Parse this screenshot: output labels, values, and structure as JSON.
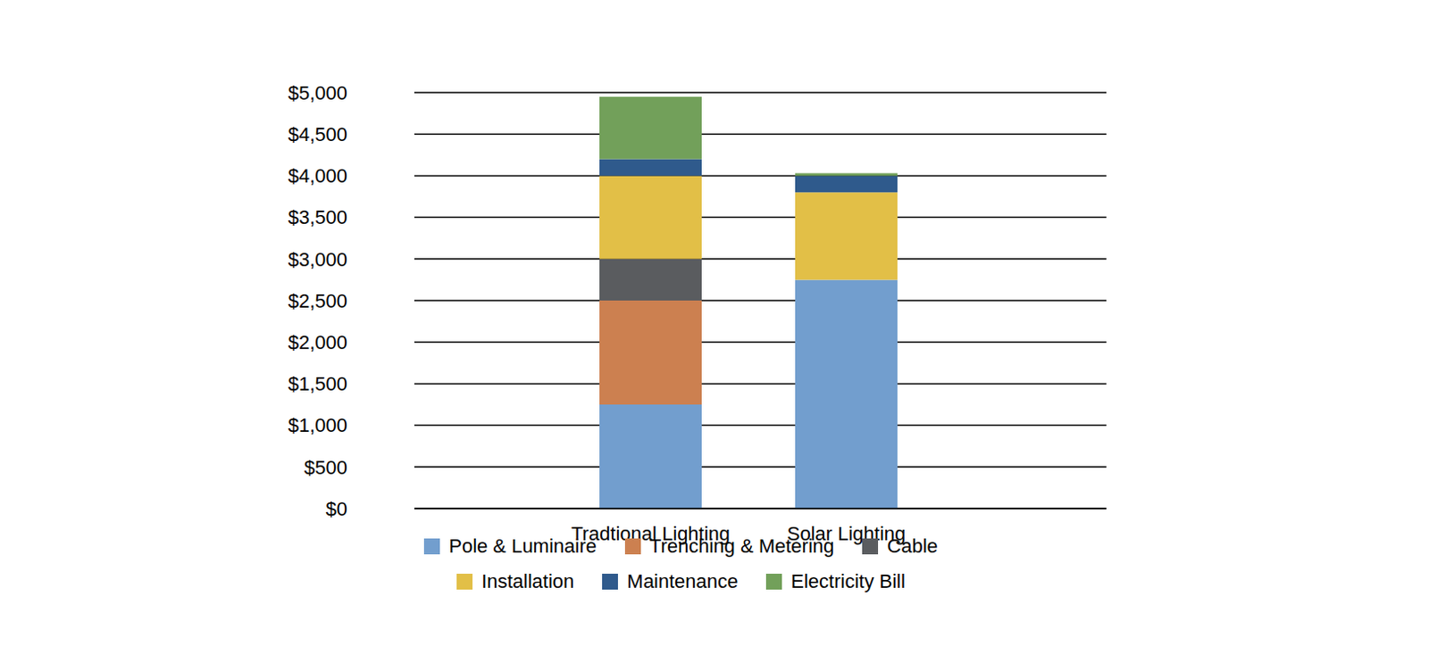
{
  "chart_data": {
    "type": "bar",
    "stacked": true,
    "grid": true,
    "legend": "bottom",
    "categories": [
      "Tradtional Lighting",
      "Solar Lighting"
    ],
    "series": [
      {
        "name": "Pole & Luminaire",
        "color": "#729ECE",
        "values": [
          1250,
          2750
        ]
      },
      {
        "name": "Trenching & Metering",
        "color": "#CC8050",
        "values": [
          1250,
          0
        ]
      },
      {
        "name": "Cable",
        "color": "#5A5C5F",
        "values": [
          500,
          0
        ]
      },
      {
        "name": "Installation",
        "color": "#E2BF47",
        "values": [
          1000,
          1050
        ]
      },
      {
        "name": "Maintenance",
        "color": "#2F5A8C",
        "values": [
          200,
          200
        ]
      },
      {
        "name": "Electricity Bill",
        "color": "#72A05A",
        "values": [
          750,
          30
        ]
      }
    ],
    "ylim": [
      0,
      5000
    ],
    "yticks": [
      {
        "value": 0,
        "label": "$0"
      },
      {
        "value": 500,
        "label": "$500"
      },
      {
        "value": 1000,
        "label": "$1,000"
      },
      {
        "value": 1500,
        "label": "$1,500"
      },
      {
        "value": 2000,
        "label": "$2,000"
      },
      {
        "value": 2500,
        "label": "$2,500"
      },
      {
        "value": 3000,
        "label": "$3,000"
      },
      {
        "value": 3500,
        "label": "$3,500"
      },
      {
        "value": 4000,
        "label": "$4,000"
      },
      {
        "value": 4500,
        "label": "$4,500"
      },
      {
        "value": 5000,
        "label": "$5,000"
      }
    ]
  }
}
